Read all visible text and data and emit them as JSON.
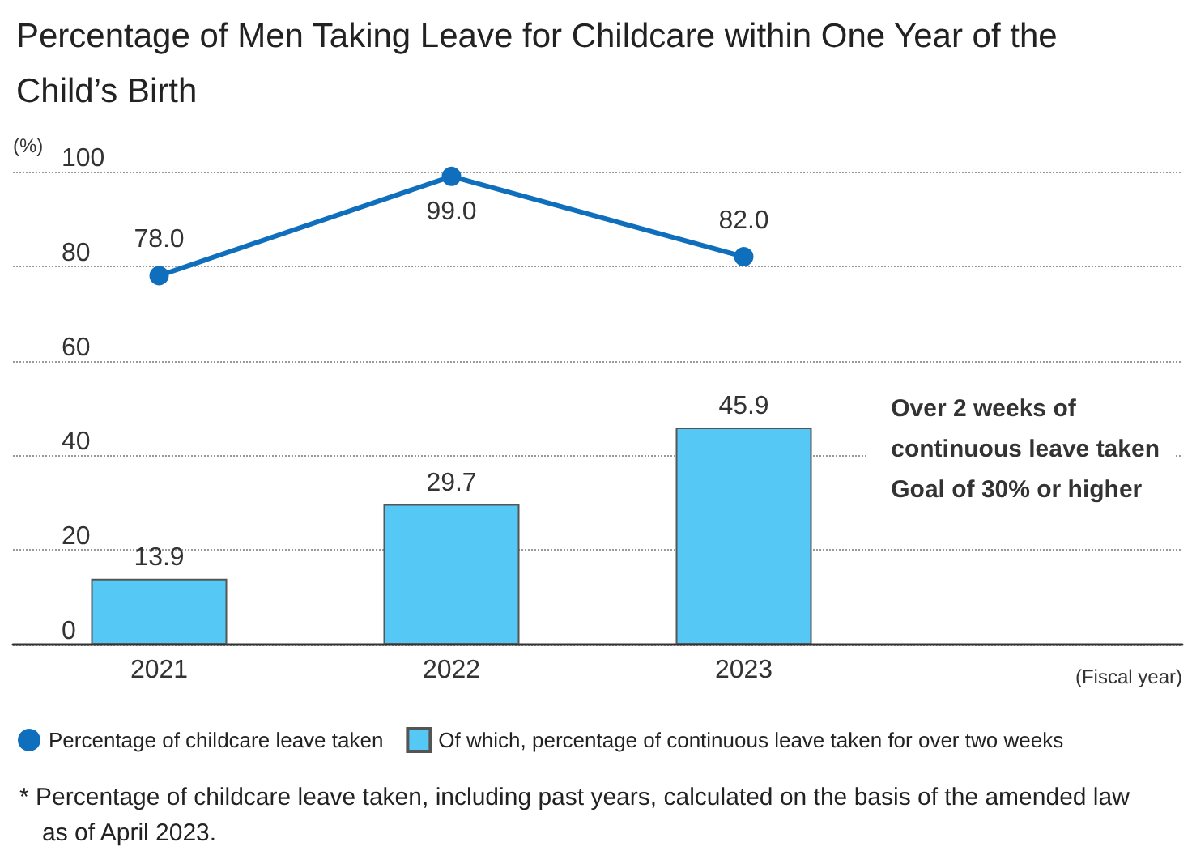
{
  "chart_data": {
    "type": "bar",
    "title": "Percentage of Men Taking Leave for Childcare within One Year of the Child’s Birth",
    "ylabel": "(%)",
    "xlabel": "(Fiscal year)",
    "categories": [
      "2021",
      "2022",
      "2023",
      null
    ],
    "series": [
      {
        "name": "Percentage of childcare leave taken",
        "type": "line",
        "color": "#0f6fbd",
        "values": [
          78,
          99,
          82,
          null
        ],
        "value_labels": [
          "78.0",
          "99.0",
          "82.0",
          null
        ]
      },
      {
        "name": "Of which, percentage of continuous leave taken for over two weeks",
        "color": "#56c8f5",
        "values": [
          13.9,
          29.7,
          45.9,
          null
        ]
      }
    ],
    "ylim": [
      0,
      100
    ],
    "yticks": [
      0,
      20,
      40,
      60,
      80,
      100
    ],
    "grid": "y",
    "legend": "bottom",
    "marker": "circle",
    "line_style": "solid",
    "data_labels": true,
    "annotations": [
      "Over 2 weeks of\ncontinuous leave taken\nGoal of 30% or higher",
      "* Percentage of childcare leave taken, including past years, calculated on the basis of the amended law as of April 2023."
    ]
  }
}
